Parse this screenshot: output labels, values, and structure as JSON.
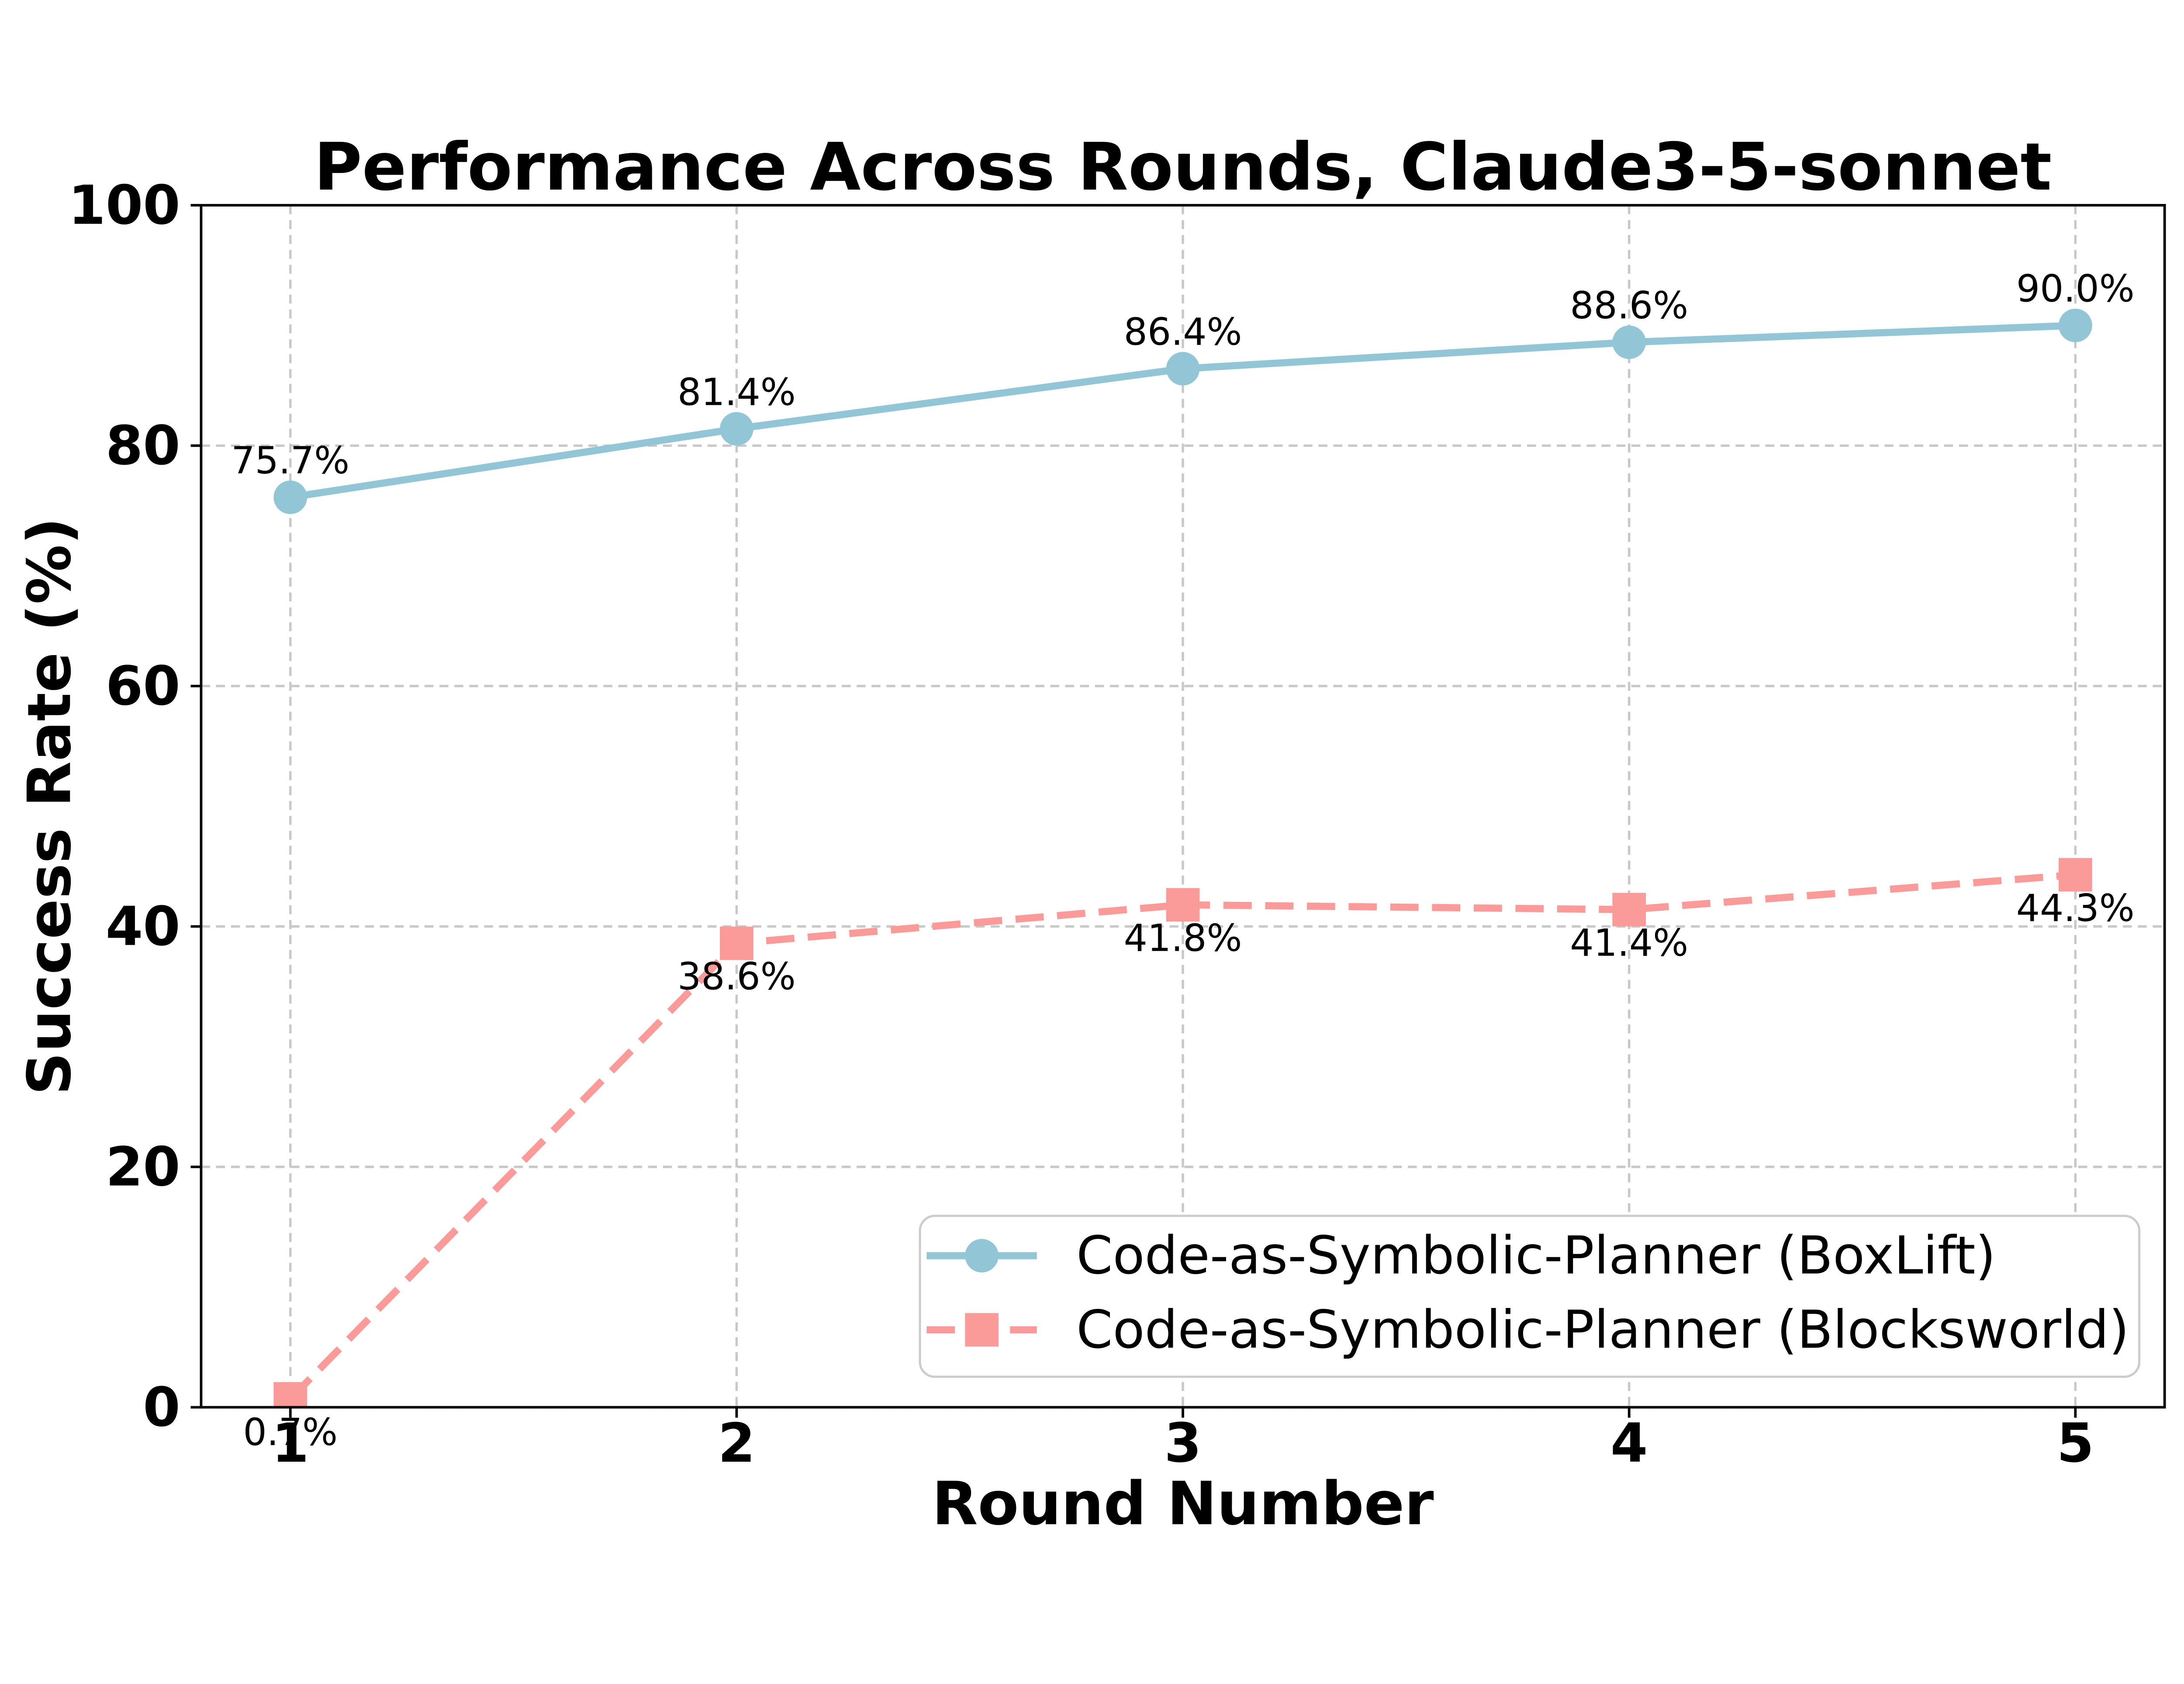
{
  "title": "Performance Across Rounds, Claude3-5-sonnet",
  "xlabel": "Round Number",
  "ylabel": "Success Rate (%)",
  "colors": {
    "boxlift_blue": "#92C5D5",
    "blocksworld_pink": "#FA9A99",
    "grid_gray": "#C8C8C8",
    "legend_border": "#CCCCCC",
    "background": "#FFFFFF",
    "text": "#000000"
  },
  "chart_data": {
    "type": "line",
    "title": "Performance Across Rounds, Claude3-5-sonnet",
    "xlabel": "Round Number",
    "ylabel": "Success Rate (%)",
    "x": [
      1,
      2,
      3,
      4,
      5
    ],
    "x_tick_labels": [
      "1",
      "2",
      "3",
      "4",
      "5"
    ],
    "y_ticks": [
      0,
      20,
      40,
      60,
      80,
      100
    ],
    "y_tick_labels": [
      "0",
      "20",
      "40",
      "60",
      "80",
      "100"
    ],
    "xlim": [
      0.8,
      5.2
    ],
    "ylim": [
      0,
      100
    ],
    "grid": true,
    "grid_style": "dashed",
    "legend_position": "lower right",
    "series": [
      {
        "name": "Code-as-Symbolic-Planner (BoxLift)",
        "values": [
          75.7,
          81.4,
          86.4,
          88.6,
          90.0
        ],
        "point_labels": [
          "75.7%",
          "81.4%",
          "86.4%",
          "88.6%",
          "90.0%"
        ],
        "label_side": "above",
        "color": "#92C5D5",
        "marker": "circle",
        "line_style": "solid"
      },
      {
        "name": "Code-as-Symbolic-Planner (Blocksworld)",
        "values": [
          0.7,
          38.6,
          41.8,
          41.4,
          44.3
        ],
        "point_labels": [
          "0.7%",
          "38.6%",
          "41.8%",
          "41.4%",
          "44.3%"
        ],
        "label_side": "below",
        "color": "#FA9A99",
        "marker": "square",
        "line_style": "dashed"
      }
    ]
  }
}
